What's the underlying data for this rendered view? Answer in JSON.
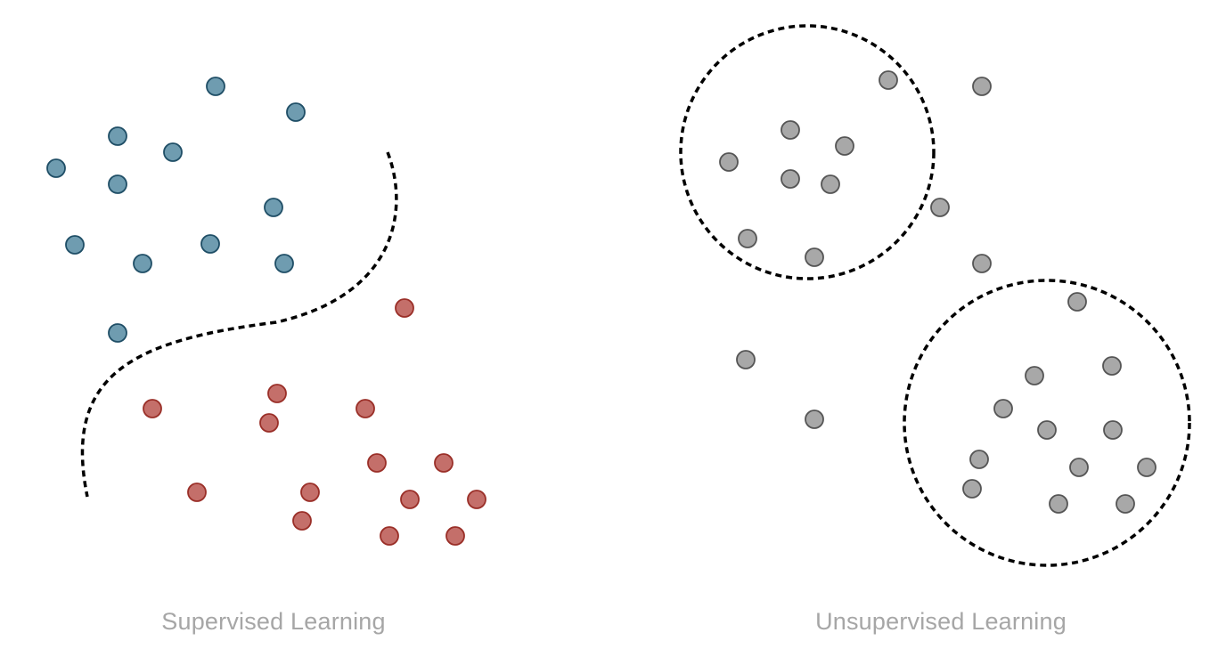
{
  "supervised": {
    "caption": "Supervised Learning",
    "colors": {
      "class_a_fill": "#6f9cb0",
      "class_a_stroke": "#1f4e66",
      "class_b_fill": "#c46f6a",
      "class_b_stroke": "#9a2f28"
    }
  },
  "unsupervised": {
    "caption": "Unsupervised Learning",
    "colors": {
      "point_fill": "#a8a8a8",
      "point_stroke": "#555555"
    }
  }
}
